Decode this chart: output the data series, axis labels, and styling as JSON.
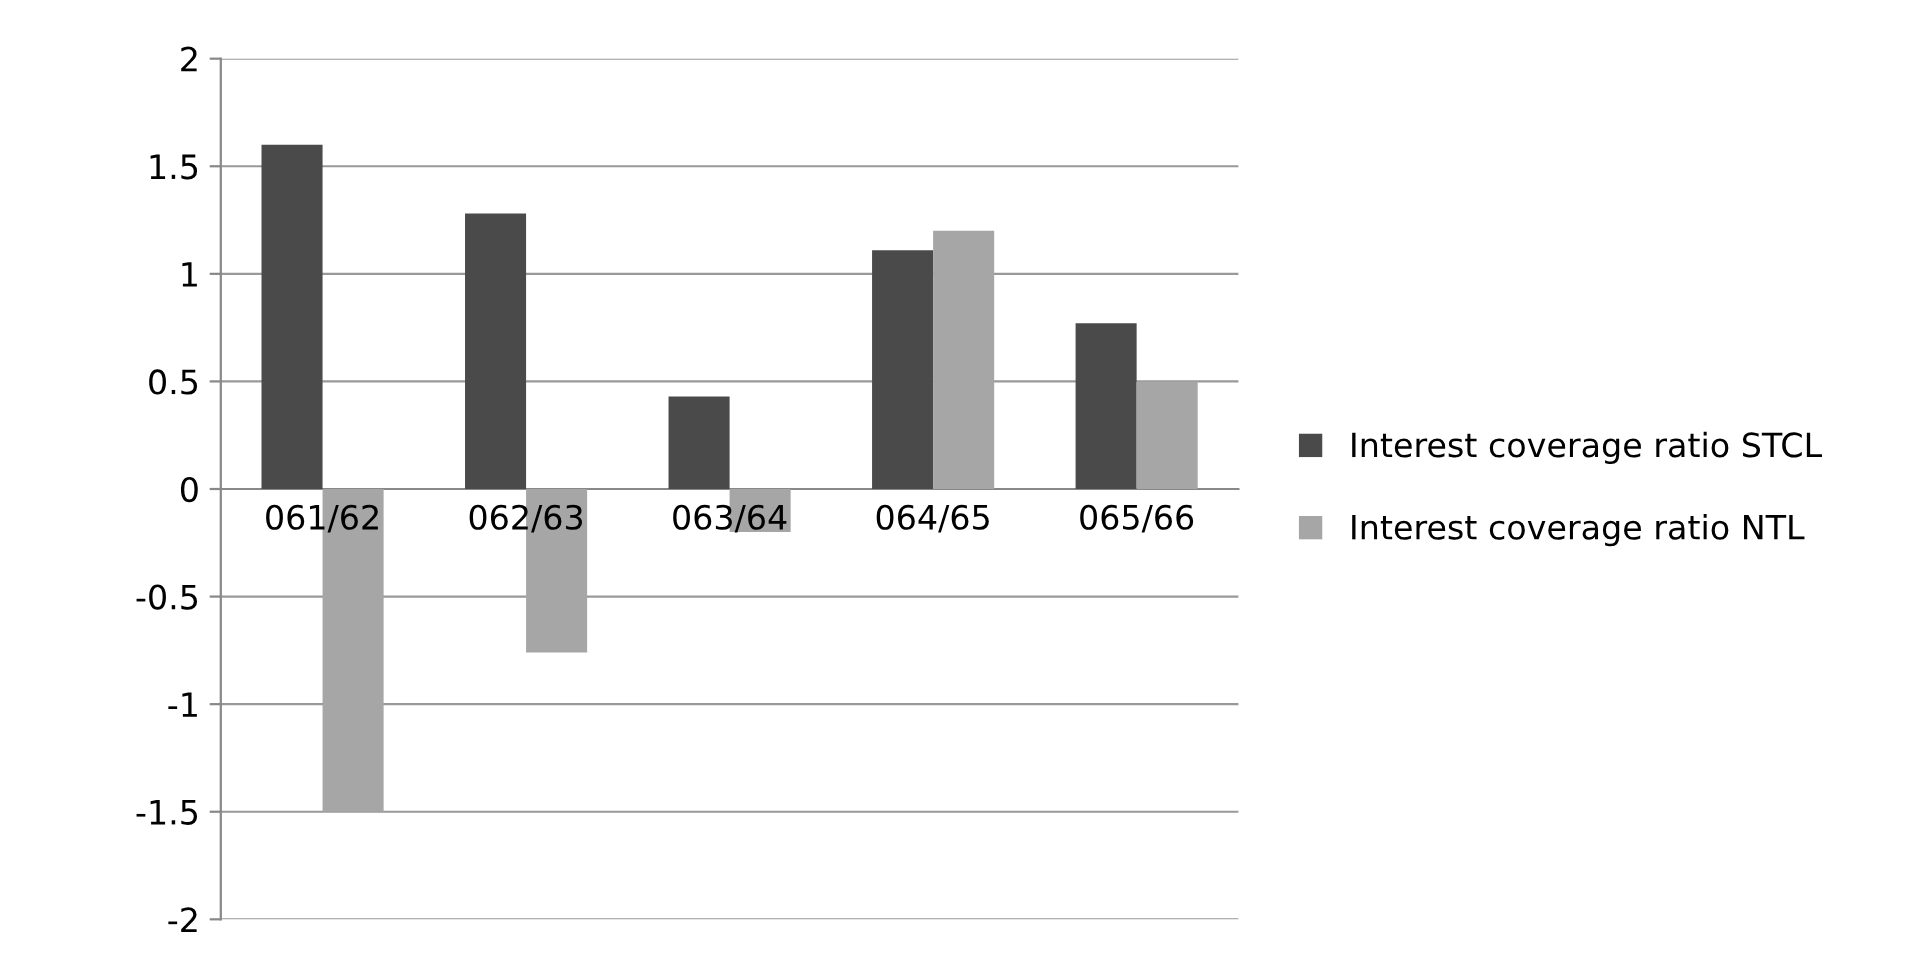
{
  "chart_data": {
    "type": "bar",
    "categories": [
      "061/62",
      "062/63",
      "063/64",
      "064/65",
      "065/66"
    ],
    "series": [
      {
        "name": "Interest coverage ratio STCL",
        "color": "#4a4a4a",
        "values": [
          1.6,
          1.28,
          0.43,
          1.11,
          0.77
        ]
      },
      {
        "name": "Interest coverage ratio NTL",
        "color": "#a6a6a6",
        "values": [
          -1.5,
          -0.76,
          -0.2,
          1.2,
          0.5
        ]
      }
    ],
    "ylim": [
      -2,
      2
    ],
    "yticks": [
      -2,
      -1.5,
      -1,
      -0.5,
      0,
      0.5,
      1,
      1.5,
      2
    ],
    "grid": "y",
    "legend": "right"
  }
}
